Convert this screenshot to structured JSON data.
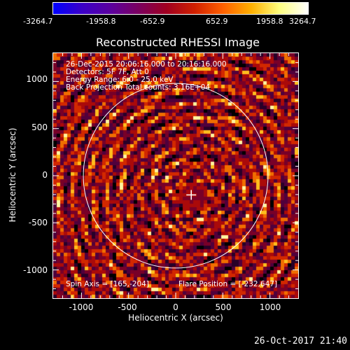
{
  "colorbar": {
    "tick_labels": [
      "-3264.7",
      "-1958.8",
      "-652.9",
      "652.9",
      "1958.8",
      "3264.7"
    ],
    "tick_values": [
      -3264.7,
      -1958.8,
      -652.9,
      652.9,
      1958.8,
      3264.7
    ],
    "range": [
      -3264.7,
      3264.7
    ],
    "colormap_stops": [
      "#0000ff",
      "#3a00c8",
      "#5a00a0",
      "#7a0060",
      "#a00020",
      "#d02000",
      "#ff6000",
      "#ffb000",
      "#ffff80",
      "#ffffff"
    ]
  },
  "plot": {
    "title": "Reconstructed RHESSI Image",
    "xlabel": "Heliocentric X (arcsec)",
    "ylabel": "Heliocentric Y (arcsec)",
    "x_range": [
      -1300,
      1300
    ],
    "y_range": [
      -1300,
      1300
    ],
    "x_ticks": [
      -1000,
      -500,
      0,
      500,
      1000
    ],
    "y_ticks": [
      -1000,
      -500,
      0,
      500,
      1000
    ],
    "x_tick_labels": [
      "-1000",
      "-500",
      "0",
      "500",
      "1000"
    ],
    "y_tick_labels": [
      "-1000",
      "-500",
      "0",
      "500",
      "1000"
    ],
    "solar_radius_arcsec": 980,
    "flare_marker": [
      165,
      -204
    ],
    "info_lines": [
      "26-Dec-2015 20:06:16.000 to 20:16:16.000",
      "Detectors: 5F 7F, Att 0",
      "Energy Range: 6.0 - 25.0 keV",
      "Back Projection   Total counts: 3.16E+04"
    ],
    "spin_axis": "Spin Axis = [165,-204]",
    "flare_position": "Flare Position = [-232,647]"
  },
  "footer": {
    "timestamp": "26-Oct-2017 21:40"
  }
}
